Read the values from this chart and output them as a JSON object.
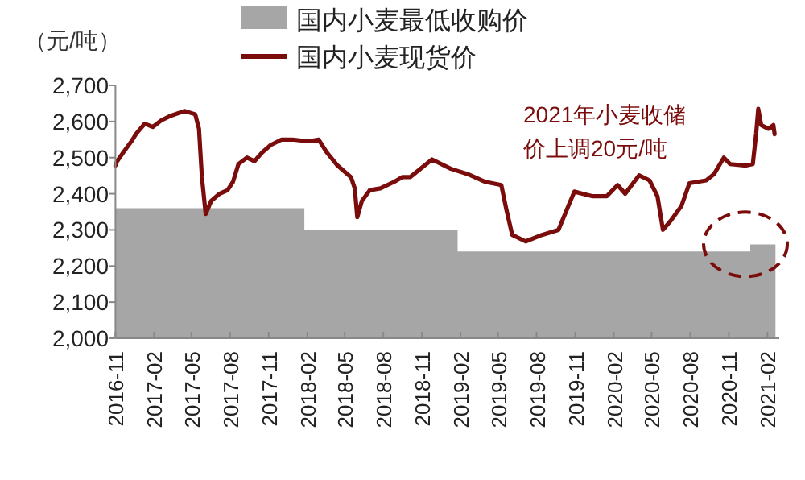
{
  "chart_data": {
    "type": "line",
    "ylabel": "（元/吨）",
    "legend": "top",
    "series": [
      {
        "name": "国内小麦最低收购价",
        "type": "area",
        "color": "#a6a6a6",
        "x": [
          "2016-11-01",
          "2018-01-25",
          "2018-01-25",
          "2019-01-25",
          "2019-01-25",
          "2020-12-22",
          "2020-12-22",
          "2021-02-20"
        ],
        "values": [
          2360,
          2360,
          2300,
          2300,
          2240,
          2240,
          2260,
          2260
        ]
      },
      {
        "name": "国内小麦现货价",
        "color": "#7b0c0c",
        "x": [
          "2016-11-01",
          "2016-11-05",
          "2016-11-20",
          "2016-12-09",
          "2016-12-21",
          "2017-01-10",
          "2017-01-29",
          "2017-02-18",
          "2017-03-13",
          "2017-04-14",
          "2017-05-10",
          "2017-05-19",
          "2017-05-26",
          "2017-06-04",
          "2017-06-17",
          "2017-07-07",
          "2017-07-26",
          "2017-08-08",
          "2017-08-21",
          "2017-09-10",
          "2017-09-28",
          "2017-10-17",
          "2017-11-06",
          "2017-12-02",
          "2017-12-27",
          "2018-02-04",
          "2018-02-28",
          "2018-03-19",
          "2018-04-14",
          "2018-05-16",
          "2018-05-25",
          "2018-05-31",
          "2018-06-11",
          "2018-06-30",
          "2018-07-25",
          "2018-08-27",
          "2018-09-15",
          "2018-10-04",
          "2018-11-25",
          "2019-01-09",
          "2019-02-17",
          "2019-04-01",
          "2019-05-09",
          "2019-05-21",
          "2019-06-04",
          "2019-07-06",
          "2019-08-14",
          "2019-09-22",
          "2019-10-30",
          "2019-11-18",
          "2019-12-13",
          "2020-01-15",
          "2020-02-10",
          "2020-02-28",
          "2020-04-01",
          "2020-04-26",
          "2020-05-15",
          "2020-05-28",
          "2020-06-16",
          "2020-07-11",
          "2020-07-30",
          "2020-09-08",
          "2020-09-27",
          "2020-10-20",
          "2020-11-04",
          "2020-12-12",
          "2020-12-28",
          "2021-01-05",
          "2021-01-10",
          "2021-01-17",
          "2021-02-03",
          "2021-02-15",
          "2021-02-18"
        ],
        "values": [
          2478,
          2490,
          2515,
          2545,
          2567,
          2594,
          2585,
          2603,
          2616,
          2629,
          2620,
          2580,
          2446,
          2344,
          2380,
          2400,
          2410,
          2433,
          2482,
          2500,
          2490,
          2515,
          2535,
          2550,
          2550,
          2545,
          2550,
          2515,
          2478,
          2446,
          2415,
          2335,
          2380,
          2410,
          2415,
          2433,
          2446,
          2446,
          2495,
          2469,
          2455,
          2433,
          2424,
          2357,
          2286,
          2268,
          2286,
          2300,
          2406,
          2400,
          2393,
          2393,
          2424,
          2400,
          2451,
          2437,
          2393,
          2300,
          2326,
          2366,
          2429,
          2437,
          2455,
          2500,
          2482,
          2478,
          2482,
          2567,
          2635,
          2590,
          2580,
          2590,
          2565
        ]
      }
    ],
    "xlim": [
      "2016-11-01",
      "2021-03-01"
    ],
    "xticks": [
      "2016-11",
      "2017-02",
      "2017-05",
      "2017-08",
      "2017-11",
      "2018-02",
      "2018-05",
      "2018-08",
      "2018-11",
      "2019-02",
      "2019-05",
      "2019-08",
      "2019-11",
      "2020-02",
      "2020-05",
      "2020-08",
      "2020-11",
      "2021-02"
    ],
    "ylim": [
      2000,
      2700
    ],
    "yticks": [
      {
        "value": 2000,
        "label": "2,000"
      },
      {
        "value": 2100,
        "label": "2,100"
      },
      {
        "value": 2200,
        "label": "2,200"
      },
      {
        "value": 2300,
        "label": "2,300"
      },
      {
        "value": 2400,
        "label": "2,400"
      },
      {
        "value": 2500,
        "label": "2,500"
      },
      {
        "value": 2600,
        "label": "2,600"
      },
      {
        "value": 2700,
        "label": "2,700"
      }
    ],
    "annotations": [
      "2021年小麦收储价上调20元/吨"
    ]
  }
}
